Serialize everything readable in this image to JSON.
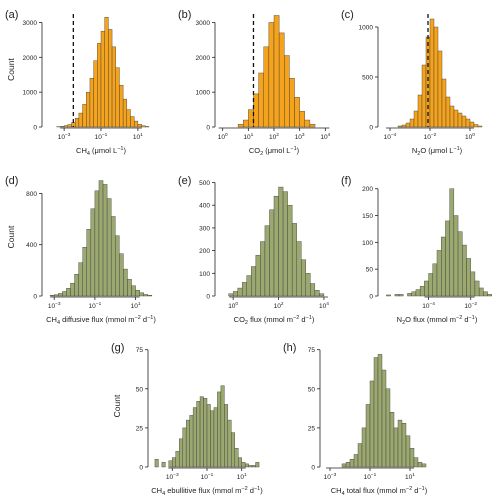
{
  "chart_data": [
    {
      "type": "bar",
      "panel_label": "(a)",
      "xlabel_main": "CH",
      "xlabel_sub": "4",
      "xlabel_unit": " (μmol L",
      "xlabel_exp": "−1",
      "xlabel_end": ")",
      "ylabel": "Count",
      "x_scale": "log10",
      "bin_exp": [
        -3.4,
        -3.2,
        -3.0,
        -2.8,
        -2.6,
        -2.4,
        -2.2,
        -2.0,
        -1.8,
        -1.6,
        -1.4,
        -1.2,
        -1.0,
        -0.8,
        -0.6,
        -0.4,
        -0.2,
        0.0,
        0.2,
        0.4,
        0.6,
        0.8,
        1.0,
        1.2,
        1.4
      ],
      "counts": [
        10,
        20,
        40,
        70,
        130,
        250,
        400,
        650,
        1000,
        1400,
        1900,
        2400,
        2750,
        3150,
        2800,
        2300,
        1700,
        1200,
        800,
        500,
        300,
        170,
        80,
        35,
        15
      ],
      "bin_width_exp": 0.2,
      "ylim": [
        0,
        3300
      ],
      "y_ticks": [
        "0",
        "1000",
        "2000",
        "3000"
      ],
      "y_tick_values": [
        0,
        1000,
        2000,
        3000
      ],
      "x_tick_exps": [
        -3,
        -1,
        1
      ],
      "x_tick_labels": [
        "−3",
        "−1",
        "1"
      ],
      "xlim_exp": [
        -4.2,
        2.2
      ],
      "reference_line_exp": -2.5,
      "color": "#F5A21C"
    },
    {
      "type": "bar",
      "panel_label": "(b)",
      "xlabel_main": "CO",
      "xlabel_sub": "2",
      "xlabel_unit": " (μmol L",
      "xlabel_exp": "−1",
      "xlabel_end": ")",
      "ylabel": "",
      "x_scale": "log10",
      "bin_exp": [
        0.6,
        0.8,
        1.0,
        1.2,
        1.4,
        1.6,
        1.8,
        2.0,
        2.2,
        2.4,
        2.6,
        2.8,
        3.0,
        3.2,
        3.4
      ],
      "counts": [
        80,
        200,
        500,
        950,
        1550,
        2300,
        3000,
        3200,
        2700,
        2050,
        1400,
        850,
        450,
        200,
        80
      ],
      "bin_width_exp": 0.2,
      "ylim": [
        0,
        3300
      ],
      "y_ticks": [
        "0",
        "1000",
        "2000",
        "3000"
      ],
      "y_tick_values": [
        0,
        1000,
        2000,
        3000
      ],
      "x_tick_exps": [
        0,
        1,
        2,
        3,
        4
      ],
      "x_tick_labels": [
        "0",
        "1",
        "2",
        "3",
        "4"
      ],
      "xlim_exp": [
        -0.3,
        4.3
      ],
      "reference_line_exp": 1.2,
      "color": "#F5A21C"
    },
    {
      "type": "bar",
      "panel_label": "(c)",
      "xlabel_main": "N",
      "xlabel_sub": "2",
      "xlabel_unit": "O (μmol L",
      "xlabel_exp": "−1",
      "xlabel_end": ")",
      "ylabel": "",
      "x_scale": "log10",
      "bin_exp": [
        -3.6,
        -3.4,
        -3.2,
        -3.0,
        -2.8,
        -2.6,
        -2.4,
        -2.2,
        -2.0,
        -1.8,
        -1.6,
        -1.4,
        -1.2,
        -1.0,
        -0.8,
        -0.6,
        -0.4,
        -0.2,
        0.0,
        0.2,
        0.4
      ],
      "counts": [
        10,
        20,
        40,
        80,
        160,
        320,
        620,
        900,
        1080,
        1000,
        760,
        480,
        300,
        210,
        170,
        140,
        110,
        80,
        50,
        25,
        10
      ],
      "bin_width_exp": 0.2,
      "ylim": [
        0,
        1150
      ],
      "y_ticks": [
        "0",
        "500",
        "1000"
      ],
      "y_tick_values": [
        0,
        500,
        1000
      ],
      "x_tick_exps": [
        -4,
        -2,
        0
      ],
      "x_tick_labels": [
        "−4",
        "−2",
        "0"
      ],
      "xlim_exp": [
        -4.6,
        1.3
      ],
      "reference_line_exp": -2.1,
      "color": "#F5A21C"
    },
    {
      "type": "bar",
      "panel_label": "(d)",
      "xlabel_main": "CH",
      "xlabel_sub": "4",
      "xlabel_unit": " diffusive flux (mmol m",
      "xlabel_exp": "−2",
      "xlabel_mid": " d",
      "xlabel_exp2": "−1",
      "xlabel_end": ")",
      "ylabel": "Count",
      "x_scale": "log10",
      "bin_exp": [
        -3.2,
        -3.0,
        -2.8,
        -2.6,
        -2.4,
        -2.2,
        -2.0,
        -1.8,
        -1.6,
        -1.4,
        -1.2,
        -1.0,
        -0.8,
        -0.6,
        -0.4,
        -0.2,
        0.0,
        0.2,
        0.4,
        0.6,
        0.8,
        1.0,
        1.2,
        1.4,
        1.6
      ],
      "counts": [
        5,
        10,
        20,
        35,
        60,
        100,
        170,
        260,
        380,
        520,
        680,
        820,
        900,
        870,
        760,
        620,
        470,
        330,
        210,
        130,
        80,
        45,
        25,
        12,
        6
      ],
      "bin_width_exp": 0.2,
      "ylim": [
        0,
        920
      ],
      "y_ticks": [
        "0",
        "400",
        "800"
      ],
      "y_tick_values": [
        0,
        400,
        800
      ],
      "x_tick_exps": [
        -3,
        -1,
        1
      ],
      "x_tick_labels": [
        "−3",
        "−1",
        "1"
      ],
      "xlim_exp": [
        -3.6,
        2.2
      ],
      "color": "#9BA86F"
    },
    {
      "type": "bar",
      "panel_label": "(e)",
      "xlabel_main": "CO",
      "xlabel_sub": "2",
      "xlabel_unit": " flux (mmol m",
      "xlabel_exp": "−2",
      "xlabel_mid": " d",
      "xlabel_exp2": "−1",
      "xlabel_end": ")",
      "ylabel": "",
      "x_scale": "log10",
      "bin_exp": [
        -0.2,
        0.0,
        0.2,
        0.4,
        0.6,
        0.8,
        1.0,
        1.2,
        1.4,
        1.6,
        1.8,
        2.0,
        2.2,
        2.4,
        2.6,
        2.8,
        3.0,
        3.2,
        3.4,
        3.6,
        3.8
      ],
      "counts": [
        10,
        20,
        35,
        60,
        90,
        130,
        180,
        240,
        310,
        380,
        440,
        480,
        460,
        400,
        320,
        240,
        160,
        100,
        55,
        25,
        10
      ],
      "bin_width_exp": 0.2,
      "ylim": [
        0,
        520
      ],
      "y_ticks": [
        "0",
        "100",
        "200",
        "300",
        "400",
        "500"
      ],
      "y_tick_values": [
        0,
        100,
        200,
        300,
        400,
        500
      ],
      "x_tick_exps": [
        0,
        2,
        4
      ],
      "x_tick_labels": [
        "0",
        "2",
        "4"
      ],
      "xlim_exp": [
        -0.8,
        4.4
      ],
      "color": "#9BA86F"
    },
    {
      "type": "bar",
      "panel_label": "(f)",
      "xlabel_main": "N",
      "xlabel_sub": "2",
      "xlabel_unit": "O flux (mmol m",
      "xlabel_exp": "−2",
      "xlabel_mid": " d",
      "xlabel_exp2": "−1",
      "xlabel_end": ")",
      "ylabel": "",
      "x_scale": "log10",
      "bin_exp": [
        -6.0,
        -5.6,
        -5.4,
        -5.0,
        -4.8,
        -4.6,
        -4.4,
        -4.2,
        -4.0,
        -3.8,
        -3.6,
        -3.4,
        -3.2,
        -3.0,
        -2.8,
        -2.6,
        -2.4,
        -2.2,
        -2.0,
        -1.8,
        -1.6,
        -1.4,
        -1.2
      ],
      "counts": [
        2,
        3,
        3,
        5,
        8,
        12,
        18,
        28,
        42,
        60,
        85,
        110,
        140,
        200,
        150,
        120,
        95,
        70,
        45,
        28,
        15,
        8,
        3
      ],
      "bin_width_exp": 0.2,
      "ylim": [
        0,
        220
      ],
      "y_ticks": [
        "0",
        "50",
        "100",
        "150",
        "200"
      ],
      "y_tick_values": [
        0,
        50,
        100,
        150,
        200
      ],
      "x_tick_exps": [
        -4,
        -2
      ],
      "x_tick_labels": [
        "−4",
        "−2"
      ],
      "xlim_exp": [
        -6.4,
        -0.8
      ],
      "color": "#9BA86F"
    },
    {
      "type": "bar",
      "panel_label": "(g)",
      "xlabel_main": "CH",
      "xlabel_sub": "4",
      "xlabel_unit": " ebullitive flux (mmol m",
      "xlabel_exp": "−2",
      "xlabel_mid": " d",
      "xlabel_exp2": "−1",
      "xlabel_end": ")",
      "ylabel": "Count",
      "x_scale": "log10",
      "bin_exp": [
        -4.0,
        -3.6,
        -3.2,
        -3.0,
        -2.8,
        -2.6,
        -2.4,
        -2.2,
        -2.0,
        -1.8,
        -1.6,
        -1.4,
        -1.2,
        -1.0,
        -0.8,
        -0.6,
        -0.4,
        -0.2,
        0.0,
        0.2,
        0.4,
        0.6,
        0.8,
        1.0,
        1.2,
        1.4,
        1.6,
        1.8
      ],
      "counts": [
        5,
        3,
        4,
        6,
        10,
        18,
        25,
        30,
        33,
        38,
        42,
        45,
        44,
        40,
        36,
        38,
        48,
        52,
        40,
        30,
        22,
        12,
        6,
        3,
        2,
        1,
        1,
        3
      ],
      "bin_width_exp": 0.2,
      "ylim": [
        0,
        78
      ],
      "y_ticks": [
        "0",
        "25",
        "50",
        "75"
      ],
      "y_tick_values": [
        0,
        25,
        50,
        75
      ],
      "x_tick_exps": [
        -3,
        -1,
        1
      ],
      "x_tick_labels": [
        "−3",
        "−1",
        "1"
      ],
      "xlim_exp": [
        -4.4,
        2.4
      ],
      "color": "#9BA86F"
    },
    {
      "type": "bar",
      "panel_label": "(h)",
      "xlabel_main": "CH",
      "xlabel_sub": "4",
      "xlabel_unit": " total flux (mmol m",
      "xlabel_exp": "−2",
      "xlabel_mid": " d",
      "xlabel_exp2": "−1",
      "xlabel_end": ")",
      "ylabel": "",
      "x_scale": "log10",
      "bin_exp": [
        -2.4,
        -2.2,
        -2.0,
        -1.8,
        -1.6,
        -1.4,
        -1.2,
        -1.0,
        -0.8,
        -0.6,
        -0.4,
        -0.2,
        0.0,
        0.2,
        0.4,
        0.6,
        0.8,
        1.0,
        1.2,
        1.4,
        1.6
      ],
      "counts": [
        2,
        3,
        5,
        8,
        15,
        25,
        40,
        55,
        70,
        72,
        62,
        50,
        35,
        25,
        30,
        28,
        20,
        12,
        6,
        3,
        2
      ],
      "bin_width_exp": 0.2,
      "ylim": [
        0,
        78
      ],
      "y_ticks": [
        "0",
        "25",
        "50",
        "75"
      ],
      "y_tick_values": [
        0,
        25,
        50,
        75
      ],
      "x_tick_exps": [
        -3,
        -1,
        1
      ],
      "x_tick_labels": [
        "−3",
        "−1",
        "1"
      ],
      "xlim_exp": [
        -3.5,
        2.4
      ],
      "color": "#9BA86F"
    }
  ]
}
